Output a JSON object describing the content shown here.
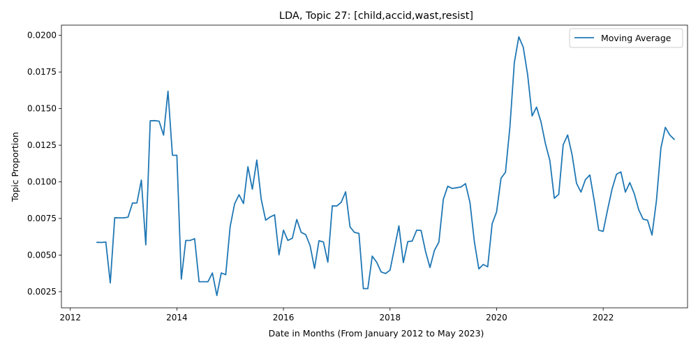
{
  "chart_data": {
    "type": "line",
    "title": "LDA, Topic 27: [child,accid,wast,resist]",
    "xlabel": "Date in Months (From January 2012 to May 2023)",
    "ylabel": "Topic Proportion",
    "x_ticks": [
      "2012",
      "2014",
      "2016",
      "2018",
      "2020",
      "2022"
    ],
    "y_ticks": [
      "0.0025",
      "0.0050",
      "0.0075",
      "0.0100",
      "0.0125",
      "0.0150",
      "0.0175",
      "0.0200"
    ],
    "xlim": [
      "2011-11",
      "2023-08"
    ],
    "ylim": [
      0.0014,
      0.0207
    ],
    "grid": false,
    "legend_position": "top-right",
    "series": [
      {
        "name": "Moving Average",
        "color": "#1f77b4",
        "x": [
          "2012-07",
          "2012-08",
          "2012-09",
          "2012-10",
          "2012-11",
          "2012-12",
          "2013-01",
          "2013-02",
          "2013-03",
          "2013-04",
          "2013-05",
          "2013-06",
          "2013-07",
          "2013-08",
          "2013-09",
          "2013-10",
          "2013-11",
          "2013-12",
          "2014-01",
          "2014-02",
          "2014-03",
          "2014-04",
          "2014-05",
          "2014-06",
          "2014-07",
          "2014-08",
          "2014-09",
          "2014-10",
          "2014-11",
          "2014-12",
          "2015-01",
          "2015-02",
          "2015-03",
          "2015-04",
          "2015-05",
          "2015-06",
          "2015-07",
          "2015-08",
          "2015-09",
          "2015-10",
          "2015-11",
          "2015-12",
          "2016-01",
          "2016-02",
          "2016-03",
          "2016-04",
          "2016-05",
          "2016-06",
          "2016-07",
          "2016-08",
          "2016-09",
          "2016-10",
          "2016-11",
          "2016-12",
          "2017-01",
          "2017-02",
          "2017-03",
          "2017-04",
          "2017-05",
          "2017-06",
          "2017-07",
          "2017-08",
          "2017-09",
          "2017-10",
          "2017-11",
          "2017-12",
          "2018-01",
          "2018-02",
          "2018-03",
          "2018-04",
          "2018-05",
          "2018-06",
          "2018-07",
          "2018-08",
          "2018-09",
          "2018-10",
          "2018-11",
          "2018-12",
          "2019-01",
          "2019-02",
          "2019-03",
          "2019-04",
          "2019-05",
          "2019-06",
          "2019-07",
          "2019-08",
          "2019-09",
          "2019-10",
          "2019-11",
          "2019-12",
          "2020-01",
          "2020-02",
          "2020-03",
          "2020-04",
          "2020-05",
          "2020-06",
          "2020-07",
          "2020-08",
          "2020-09",
          "2020-10",
          "2020-11",
          "2020-12",
          "2021-01",
          "2021-02",
          "2021-03",
          "2021-04",
          "2021-05",
          "2021-06",
          "2021-07",
          "2021-08",
          "2021-09",
          "2021-10",
          "2021-11",
          "2021-12",
          "2022-01",
          "2022-02",
          "2022-03",
          "2022-04",
          "2022-05",
          "2022-06",
          "2022-07",
          "2022-08",
          "2022-09",
          "2022-10",
          "2022-11",
          "2022-12",
          "2023-01",
          "2023-02",
          "2023-03",
          "2023-04",
          "2023-05"
        ],
        "values": [
          0.00587,
          0.00586,
          0.00589,
          0.0031,
          0.00755,
          0.00754,
          0.00754,
          0.00759,
          0.00855,
          0.00856,
          0.01012,
          0.0057,
          0.01417,
          0.01418,
          0.01414,
          0.01319,
          0.01619,
          0.01182,
          0.01181,
          0.00336,
          0.006,
          0.006,
          0.00612,
          0.00318,
          0.00318,
          0.00318,
          0.00378,
          0.00224,
          0.00378,
          0.00366,
          0.00695,
          0.0085,
          0.00912,
          0.00852,
          0.01103,
          0.0095,
          0.01149,
          0.0088,
          0.00738,
          0.0076,
          0.00775,
          0.00502,
          0.0067,
          0.006,
          0.00615,
          0.00743,
          0.00655,
          0.0064,
          0.00565,
          0.00409,
          0.00598,
          0.0059,
          0.00451,
          0.00836,
          0.00835,
          0.0086,
          0.00932,
          0.00692,
          0.00655,
          0.00648,
          0.00271,
          0.00271,
          0.00493,
          0.00451,
          0.00385,
          0.00374,
          0.00397,
          0.00547,
          0.007,
          0.00449,
          0.00592,
          0.00596,
          0.0067,
          0.00668,
          0.00525,
          0.00415,
          0.00532,
          0.00588,
          0.0088,
          0.0097,
          0.00955,
          0.0096,
          0.00965,
          0.00988,
          0.0086,
          0.0059,
          0.00406,
          0.00436,
          0.0042,
          0.00714,
          0.00795,
          0.01025,
          0.01065,
          0.01375,
          0.01815,
          0.0199,
          0.0192,
          0.0173,
          0.0145,
          0.0151,
          0.0141,
          0.0126,
          0.01145,
          0.00888,
          0.00915,
          0.01253,
          0.0132,
          0.01185,
          0.0099,
          0.0093,
          0.01015,
          0.01047,
          0.0087,
          0.0067,
          0.00662,
          0.0081,
          0.0095,
          0.01052,
          0.01068,
          0.0093,
          0.00995,
          0.0092,
          0.0081,
          0.00745,
          0.00738,
          0.00637,
          0.00872,
          0.0123,
          0.01372,
          0.0132,
          0.0129
        ]
      }
    ]
  }
}
